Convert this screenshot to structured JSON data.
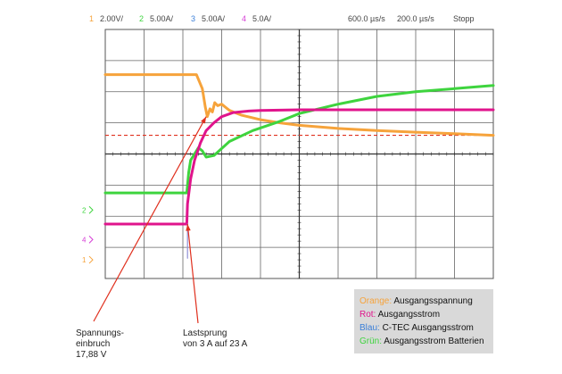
{
  "header": {
    "channels": [
      {
        "num": "1",
        "scale": "2.00V/",
        "color": "#f6a33b"
      },
      {
        "num": "2",
        "scale": "5.00A/",
        "color": "#3ed43e"
      },
      {
        "num": "3",
        "scale": "5.00A/",
        "color": "#3b7fd8"
      },
      {
        "num": "4",
        "scale": "5.0A/",
        "color": "#d63fd6"
      }
    ],
    "timebase_position": "600.0 µs/s",
    "timebase_scale": "200.0 µs/s",
    "state": "Stopp"
  },
  "chart_data": {
    "type": "line",
    "x_divisions": 10,
    "y_divisions": 8,
    "xlim": [
      0,
      10
    ],
    "ylim": [
      -4,
      4
    ],
    "grid": true,
    "threshold": {
      "y": 0.6,
      "color": "#e0301e",
      "dashed": true
    },
    "channel_markers": [
      {
        "label": "1",
        "y": -3.4,
        "color": "#f6a33b"
      },
      {
        "label": "2",
        "y": -1.8,
        "color": "#3ed43e"
      },
      {
        "label": "4",
        "y": -2.75,
        "color": "#d63fd6"
      }
    ],
    "series": [
      {
        "name": "Orange",
        "color": "#f6a33b",
        "x": [
          0,
          2.1,
          2.35,
          2.5,
          2.58,
          2.63,
          2.7,
          2.76,
          2.82,
          2.9,
          3.0,
          3.2,
          3.5,
          4.0,
          4.5,
          5.0,
          6.0,
          7.0,
          8.0,
          9.0,
          10.0
        ],
        "y": [
          2.55,
          2.55,
          2.55,
          2.1,
          1.5,
          1.2,
          1.45,
          1.35,
          1.65,
          1.55,
          1.6,
          1.4,
          1.25,
          1.1,
          1.0,
          0.92,
          0.82,
          0.75,
          0.7,
          0.65,
          0.6
        ]
      },
      {
        "name": "Grün",
        "color": "#3ed43e",
        "x": [
          0,
          2.1,
          2.15,
          2.2,
          2.4,
          2.5,
          2.6,
          2.8,
          3.2,
          3.8,
          4.5,
          5.0,
          6.0,
          7.0,
          8.0,
          9.0,
          10.0
        ],
        "y": [
          -1.25,
          -1.25,
          -0.6,
          -0.2,
          0.2,
          0.1,
          -0.1,
          -0.05,
          0.4,
          0.75,
          1.05,
          1.3,
          1.6,
          1.85,
          2.0,
          2.1,
          2.2
        ]
      },
      {
        "name": "Rot",
        "color": "#e0148c",
        "x": [
          0,
          2.1,
          2.12,
          2.2,
          2.3,
          2.45,
          2.6,
          2.8,
          3.0,
          3.3,
          3.7,
          4.0,
          5.0,
          6.0,
          7.0,
          8.0,
          9.0,
          10.0
        ],
        "y": [
          -2.25,
          -2.25,
          -1.6,
          -0.8,
          -0.2,
          0.35,
          0.75,
          1.0,
          1.2,
          1.33,
          1.38,
          1.4,
          1.42,
          1.42,
          1.42,
          1.42,
          1.42,
          1.42
        ]
      },
      {
        "name": "Blau",
        "color": "#8f8fd6",
        "x": [
          2.12,
          2.12
        ],
        "y": [
          -2.25,
          -3.35
        ]
      }
    ]
  },
  "annotations": {
    "spannungseinbruch": "Spannungs-\neinbruch\n17,88 V",
    "lastsprung": "Lastsprung\nvon 3 A auf 23 A"
  },
  "legend": {
    "items": [
      {
        "key": "Orange:",
        "text": "Ausgangsspannung",
        "color": "#f6a33b"
      },
      {
        "key": "Rot:",
        "text": "Ausgangsstrom",
        "color": "#e0148c"
      },
      {
        "key": "Blau:",
        "text": "C-TEC Ausgangsstrom",
        "color": "#3b7fd8"
      },
      {
        "key": "Grün:",
        "text": "Ausgangsstrom Batterien",
        "color": "#3ed43e"
      }
    ]
  }
}
